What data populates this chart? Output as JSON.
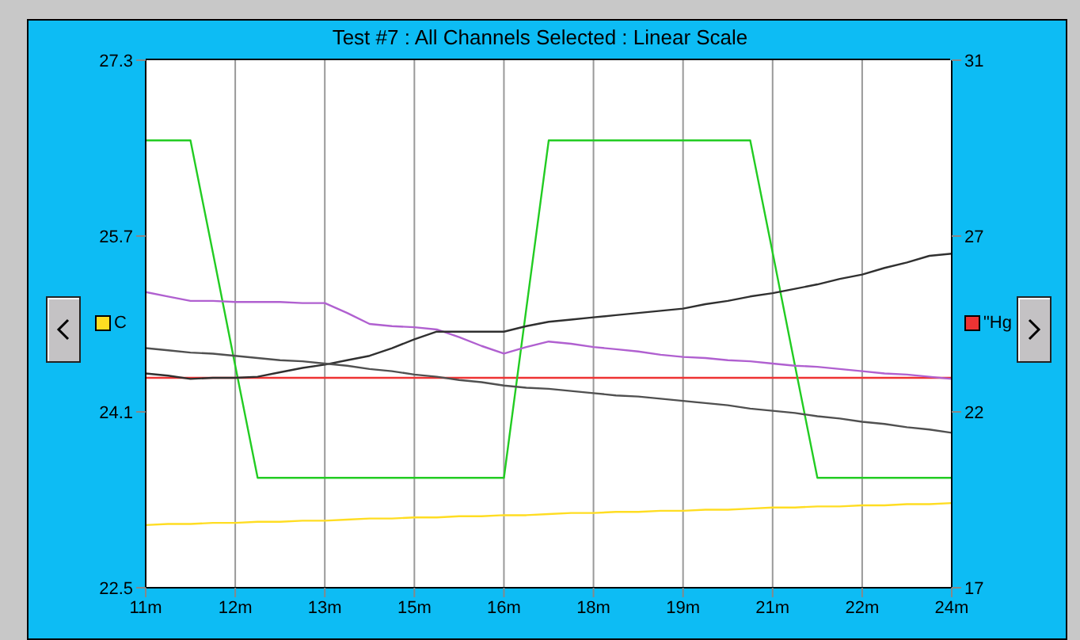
{
  "chart_data": {
    "type": "line",
    "title": "Test #7 : All Channels Selected : Linear Scale",
    "ylabel": "C",
    "y2label": "\"Hg",
    "categories": [
      "11m",
      null,
      null,
      null,
      "12m",
      null,
      null,
      null,
      "13m",
      null,
      null,
      null,
      "15m",
      null,
      null,
      null,
      "16m",
      null,
      null,
      null,
      "18m",
      null,
      null,
      null,
      "19m",
      null,
      null,
      null,
      "21m",
      null,
      null,
      null,
      "22m",
      null,
      null,
      null,
      "24m"
    ],
    "ylim": [
      22.5,
      27.3
    ],
    "yticks": [
      22.5,
      24.1,
      25.7,
      27.3
    ],
    "y2lim": [
      17.2,
      31.3
    ],
    "y2ticks": [
      {
        "value": 17.2,
        "label": "17"
      },
      {
        "value": 21.9,
        "label": "22"
      },
      {
        "value": 26.6,
        "label": "27"
      },
      {
        "value": 31.3,
        "label": "31"
      }
    ],
    "grid": "x",
    "marker": "none",
    "line_style": "solid",
    "series": [
      {
        "color": "#ffdd22",
        "values": [
          23.07,
          23.08,
          23.08,
          23.09,
          23.09,
          23.1,
          23.1,
          23.11,
          23.11,
          23.12,
          23.13,
          23.13,
          23.14,
          23.14,
          23.15,
          23.15,
          23.16,
          23.16,
          23.17,
          23.18,
          23.18,
          23.19,
          23.19,
          23.2,
          23.2,
          23.21,
          23.21,
          23.22,
          23.23,
          23.23,
          23.24,
          23.24,
          23.25,
          23.25,
          23.26,
          23.26,
          23.27
        ]
      },
      {
        "color": "#ee3333",
        "axis": "y2",
        "values": [
          22.81,
          22.81,
          22.81,
          22.81,
          22.81,
          22.81,
          22.81,
          22.81,
          22.81,
          22.81,
          22.81,
          22.81,
          22.81,
          22.81,
          22.81,
          22.81,
          22.81,
          22.81,
          22.81,
          22.81,
          22.81,
          22.81,
          22.81,
          22.81,
          22.81,
          22.81,
          22.81,
          22.81,
          22.81,
          22.81,
          22.81,
          22.81,
          22.81,
          22.81,
          22.81,
          22.81,
          22.81
        ]
      },
      {
        "color": "#22cc22",
        "values": [
          26.57,
          26.57,
          26.57,
          25.55,
          24.52,
          23.5,
          23.5,
          23.5,
          23.5,
          23.5,
          23.5,
          23.5,
          23.5,
          23.5,
          23.5,
          23.5,
          23.5,
          25.04,
          26.57,
          26.57,
          26.57,
          26.57,
          26.57,
          26.57,
          26.57,
          26.57,
          26.57,
          26.57,
          25.55,
          24.52,
          23.5,
          23.5,
          23.5,
          23.5,
          23.5,
          23.5,
          23.5
        ]
      },
      {
        "color": "#b060d0",
        "values": [
          25.19,
          25.15,
          25.11,
          25.11,
          25.1,
          25.1,
          25.1,
          25.09,
          25.09,
          25.0,
          24.9,
          24.88,
          24.87,
          24.85,
          24.78,
          24.7,
          24.63,
          24.69,
          24.74,
          24.72,
          24.69,
          24.67,
          24.65,
          24.62,
          24.6,
          24.59,
          24.57,
          24.56,
          24.54,
          24.52,
          24.51,
          24.49,
          24.47,
          24.45,
          24.44,
          24.42,
          24.4
        ]
      },
      {
        "color": "#303030",
        "values": [
          24.45,
          24.43,
          24.4,
          24.41,
          24.41,
          24.42,
          24.46,
          24.5,
          24.53,
          24.57,
          24.61,
          24.68,
          24.76,
          24.83,
          24.83,
          24.83,
          24.83,
          24.88,
          24.92,
          24.94,
          24.96,
          24.98,
          25.0,
          25.02,
          25.04,
          25.08,
          25.11,
          25.15,
          25.18,
          25.22,
          25.26,
          25.31,
          25.35,
          25.41,
          25.46,
          25.52,
          25.54
        ]
      },
      {
        "color": "#505050",
        "values": [
          24.68,
          24.66,
          24.64,
          24.63,
          24.61,
          24.59,
          24.57,
          24.56,
          24.54,
          24.52,
          24.49,
          24.47,
          24.44,
          24.42,
          24.39,
          24.37,
          24.34,
          24.32,
          24.31,
          24.29,
          24.27,
          24.25,
          24.24,
          24.22,
          24.2,
          24.18,
          24.16,
          24.13,
          24.11,
          24.09,
          24.06,
          24.04,
          24.01,
          23.99,
          23.96,
          23.94,
          23.91
        ]
      }
    ]
  }
}
